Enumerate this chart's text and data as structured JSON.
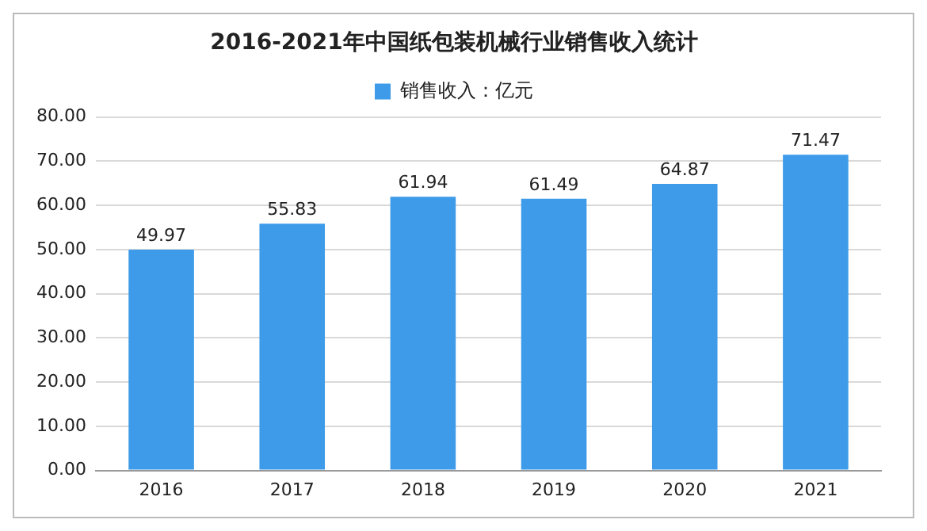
{
  "chart_data": {
    "type": "bar",
    "title": "2016-2021年中国纸包装机械行业销售收入统计",
    "categories": [
      "2016",
      "2017",
      "2018",
      "2019",
      "2020",
      "2021"
    ],
    "series": [
      {
        "name": "销售收入：亿元",
        "color": "#3d9be9",
        "values": [
          49.97,
          55.83,
          61.94,
          61.49,
          64.87,
          71.47
        ]
      }
    ],
    "ylim": [
      0,
      80
    ],
    "yticks": [
      {
        "value": 0,
        "label": "0.00"
      },
      {
        "value": 10,
        "label": "10.00"
      },
      {
        "value": 20,
        "label": "20.00"
      },
      {
        "value": 30,
        "label": "30.00"
      },
      {
        "value": 40,
        "label": "40.00"
      },
      {
        "value": 50,
        "label": "50.00"
      },
      {
        "value": 60,
        "label": "60.00"
      },
      {
        "value": 70,
        "label": "70.00"
      },
      {
        "value": 80,
        "label": "80.00"
      }
    ],
    "grid": "y",
    "legend": "top",
    "data_labels": true
  }
}
